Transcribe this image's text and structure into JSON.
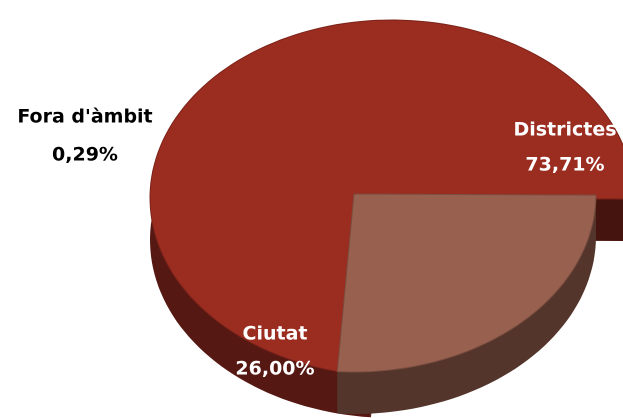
{
  "chart_data": {
    "type": "pie",
    "categories": [
      "Districtes",
      "Ciutat",
      "Fora d'àmbit"
    ],
    "values": [
      73.71,
      26.0,
      0.29
    ],
    "value_labels": [
      "73,71%",
      "26,00%",
      "0,29%"
    ],
    "colors": [
      "#9b2c20",
      "#98604f",
      "#7a5650"
    ]
  }
}
